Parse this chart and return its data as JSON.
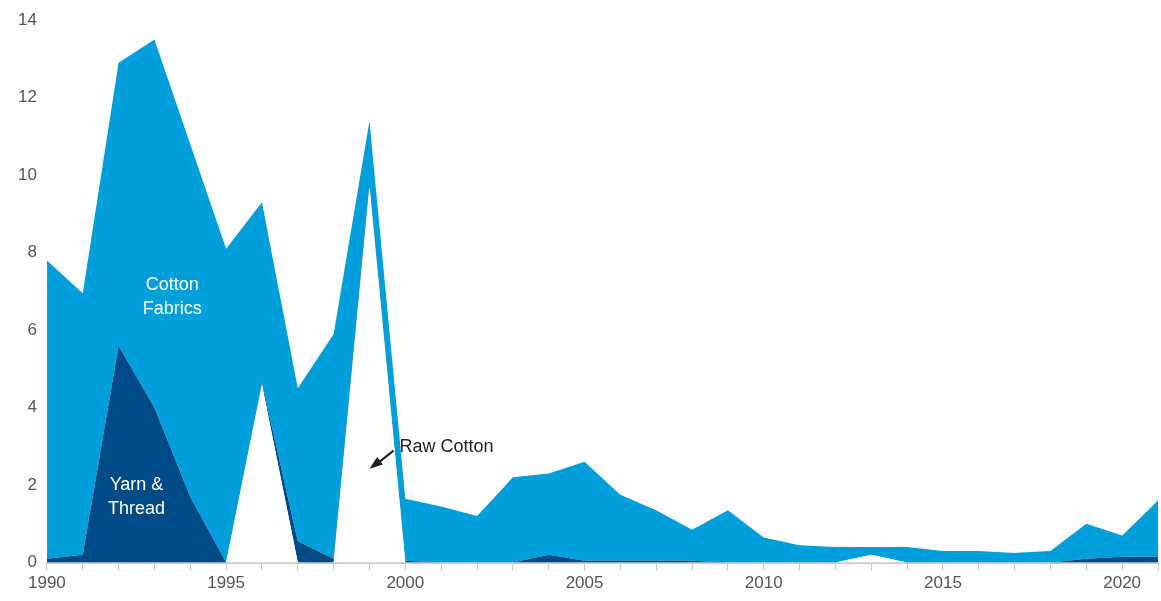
{
  "chart_data": {
    "type": "area",
    "stacked": true,
    "x": [
      1990,
      1991,
      1992,
      1993,
      1994,
      1995,
      1996,
      1997,
      1998,
      1999,
      2000,
      2001,
      2002,
      2003,
      2004,
      2005,
      2006,
      2007,
      2008,
      2009,
      2010,
      2011,
      2012,
      2013,
      2014,
      2015,
      2016,
      2017,
      2018,
      2019,
      2020,
      2021
    ],
    "series": [
      {
        "name": "Raw Cotton",
        "color": "#ffffff",
        "values": [
          0,
          0,
          0,
          0,
          0,
          0,
          4.6,
          0,
          0,
          9.7,
          0,
          0,
          0,
          0,
          0,
          0,
          0,
          0,
          0,
          0,
          0,
          0,
          0,
          0.2,
          0,
          0,
          0,
          0,
          0,
          0,
          0,
          0
        ]
      },
      {
        "name": "Yarn & Thread",
        "color": "#004b87",
        "values": [
          0.1,
          0.2,
          5.6,
          4.0,
          1.7,
          0,
          0.05,
          0.55,
          0.1,
          0.1,
          0.05,
          0,
          0,
          0,
          0.2,
          0.05,
          0.05,
          0.05,
          0.05,
          0,
          0,
          0,
          0,
          0,
          0,
          0,
          0,
          0,
          0,
          0.1,
          0.15,
          0.15
        ]
      },
      {
        "name": "Cotton Fabrics",
        "color": "#009fdb",
        "values": [
          7.7,
          6.75,
          7.3,
          9.5,
          9.1,
          8.1,
          4.65,
          3.95,
          5.8,
          1.6,
          1.6,
          1.45,
          1.2,
          2.2,
          2.1,
          2.55,
          1.7,
          1.3,
          0.8,
          1.35,
          0.65,
          0.45,
          0.4,
          0.2,
          0.4,
          0.3,
          0.3,
          0.25,
          0.3,
          0.9,
          0.55,
          1.45
        ]
      }
    ],
    "xlim": [
      1990,
      2021
    ],
    "xticks": [
      1990,
      {
        "value": 1991,
        "label": null
      },
      {
        "value": 1992,
        "label": null
      },
      {
        "value": 1993,
        "label": null
      },
      {
        "value": 1994,
        "label": null
      },
      1995,
      {
        "value": 1996,
        "label": null
      },
      {
        "value": 1997,
        "label": null
      },
      {
        "value": 1998,
        "label": null
      },
      {
        "value": 1999,
        "label": null
      },
      2000,
      {
        "value": 2001,
        "label": null
      },
      {
        "value": 2002,
        "label": null
      },
      {
        "value": 2003,
        "label": null
      },
      {
        "value": 2004,
        "label": null
      },
      2005,
      {
        "value": 2006,
        "label": null
      },
      {
        "value": 2007,
        "label": null
      },
      {
        "value": 2008,
        "label": null
      },
      {
        "value": 2009,
        "label": null
      },
      2010,
      {
        "value": 2011,
        "label": null
      },
      {
        "value": 2012,
        "label": null
      },
      {
        "value": 2013,
        "label": null
      },
      {
        "value": 2014,
        "label": null
      },
      2015,
      {
        "value": 2016,
        "label": null
      },
      {
        "value": 2017,
        "label": null
      },
      {
        "value": 2018,
        "label": null
      },
      {
        "value": 2019,
        "label": null
      },
      2020,
      {
        "value": 2021,
        "label": null
      }
    ],
    "ylim": [
      0,
      14
    ],
    "yticks": [
      0,
      2,
      4,
      6,
      8,
      10,
      12,
      14
    ],
    "grid": false,
    "legend": false
  }
}
